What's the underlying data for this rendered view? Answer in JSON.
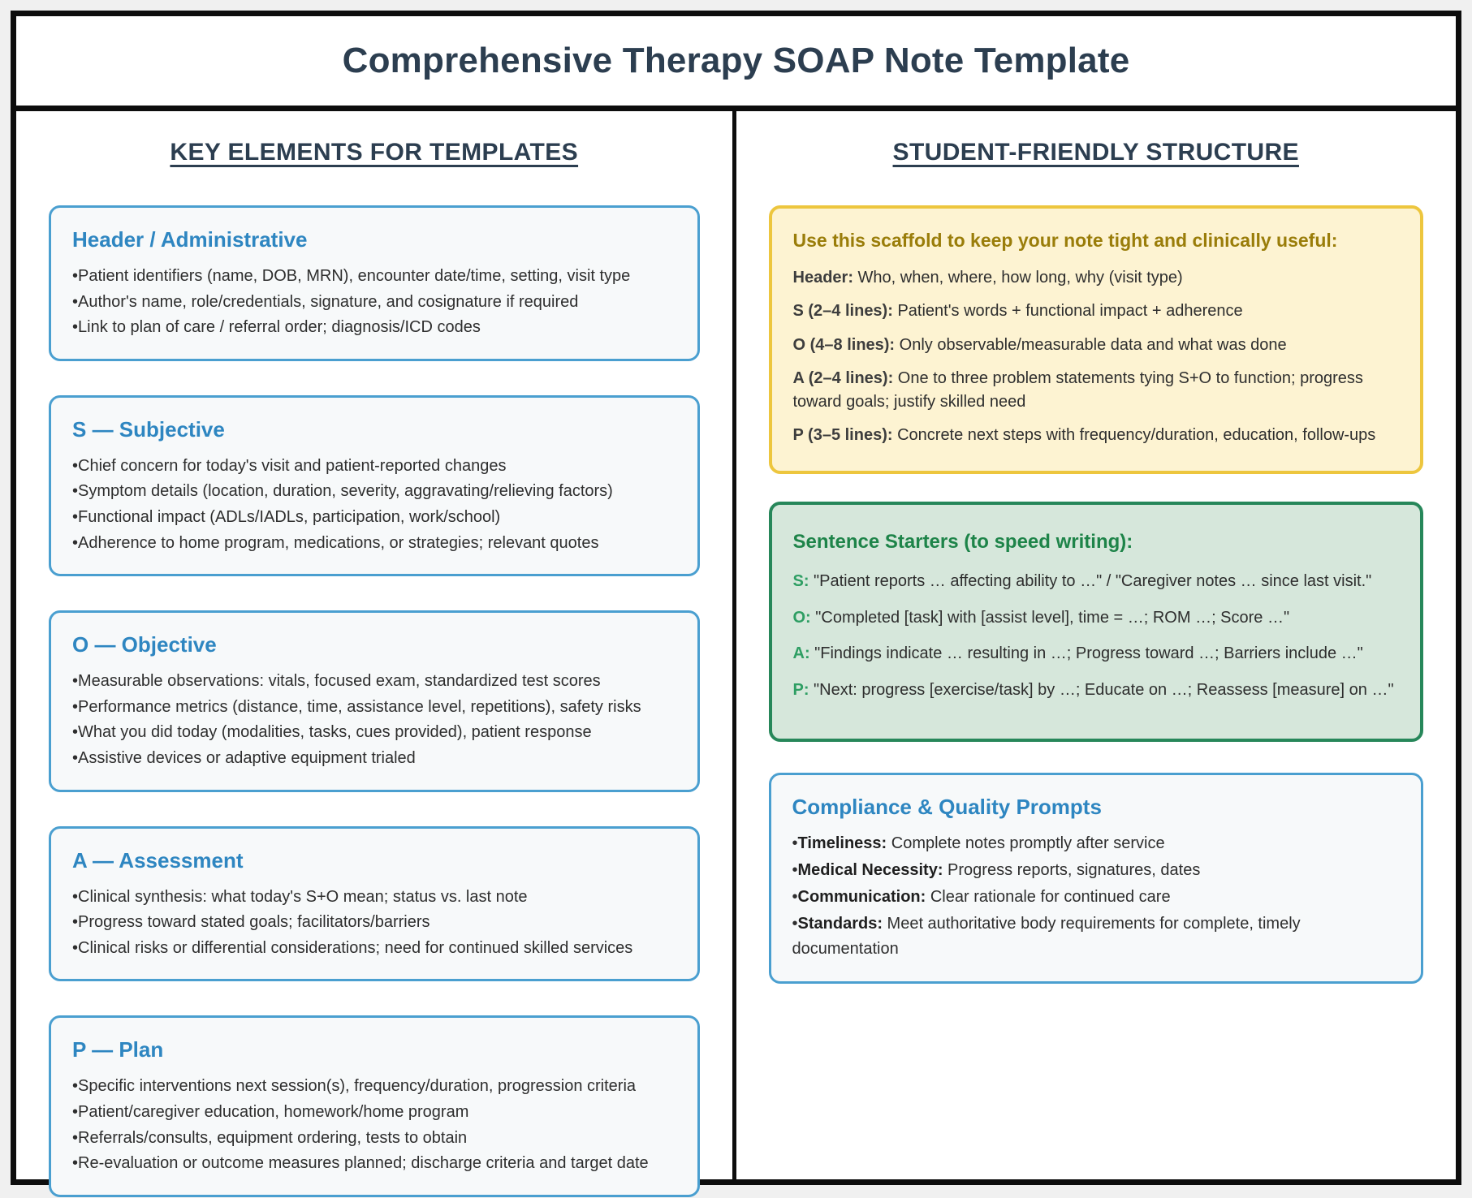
{
  "title": "Comprehensive Therapy SOAP Note Template",
  "colors": {
    "page-bg": "#f0f0f0",
    "frame-border": "#0d0d0d",
    "title-text": "#2c3e50",
    "body-text": "#2e2e2e",
    "box-blue-border": "#4a9fd0",
    "box-blue-bg": "#f7f9fa",
    "box-blue-title": "#2e86c1",
    "box-yellow-border": "#edc63e",
    "box-yellow-bg": "#fdf3d2",
    "box-yellow-title": "#9a7d0a",
    "box-yellow-label": "#3d3d3d",
    "box-green-border": "#27875a",
    "box-green-bg": "#d6e7db",
    "box-green-title": "#1e8449",
    "box-green-label": "#2e9e63"
  },
  "left": {
    "heading": "KEY ELEMENTS FOR TEMPLATES",
    "boxes": [
      {
        "title": "Header / Administrative",
        "bullets": [
          "Patient identifiers (name, DOB, MRN), encounter date/time, setting, visit type",
          "Author's name, role/credentials, signature, and cosignature if required",
          "Link to plan of care / referral order; diagnosis/ICD codes"
        ]
      },
      {
        "title": "S — Subjective",
        "bullets": [
          "Chief concern for today's visit and patient-reported changes",
          "Symptom details (location, duration, severity, aggravating/relieving factors)",
          "Functional impact (ADLs/IADLs, participation, work/school)",
          "Adherence to home program, medications, or strategies; relevant quotes"
        ]
      },
      {
        "title": "O — Objective",
        "bullets": [
          "Measurable observations: vitals, focused exam, standardized test scores",
          "Performance metrics (distance, time, assistance level, repetitions), safety risks",
          "What you did today (modalities, tasks, cues provided), patient response",
          "Assistive devices or adaptive equipment trialed"
        ]
      },
      {
        "title": "A — Assessment",
        "bullets": [
          "Clinical synthesis: what today's S+O mean; status vs. last note",
          "Progress toward stated goals; facilitators/barriers",
          "Clinical risks or differential considerations; need for continued skilled services"
        ]
      },
      {
        "title": "P — Plan",
        "bullets": [
          "Specific interventions next session(s), frequency/duration, progression criteria",
          "Patient/caregiver education, homework/home program",
          "Referrals/consults, equipment ordering, tests to obtain",
          "Re-evaluation or outcome measures planned; discharge criteria and target date"
        ]
      }
    ]
  },
  "right": {
    "heading": "STUDENT-FRIENDLY STRUCTURE",
    "scaffold_box": {
      "title": "Use this scaffold to keep your note tight and clinically useful:",
      "lines": [
        {
          "label": "Header:",
          "text": " Who, when, where, how long, why (visit type)"
        },
        {
          "label": "S (2–4 lines):",
          "text": " Patient's words + functional impact + adherence"
        },
        {
          "label": "O (4–8 lines):",
          "text": " Only observable/measurable data and what was done"
        },
        {
          "label": "A (2–4 lines):",
          "text": " One to three problem statements tying S+O to function; progress toward goals; justify skilled need"
        },
        {
          "label": "P (3–5 lines):",
          "text": " Concrete next steps with frequency/duration, education, follow-ups"
        }
      ]
    },
    "starters_box": {
      "title": "Sentence Starters (to speed writing):",
      "lines": [
        {
          "label": "S:",
          "text": " \"Patient reports … affecting ability to …\" / \"Caregiver notes … since last visit.\""
        },
        {
          "label": "O:",
          "text": " \"Completed [task] with [assist level], time = …; ROM …; Score …\""
        },
        {
          "label": "A:",
          "text": " \"Findings indicate … resulting in …; Progress toward …; Barriers include …\""
        },
        {
          "label": "P:",
          "text": " \"Next: progress [exercise/task] by …; Educate on …; Reassess [measure] on …\""
        }
      ]
    },
    "compliance_box": {
      "title": "Compliance & Quality Prompts",
      "lines": [
        {
          "label": "Timeliness:",
          "text": " Complete notes promptly after service"
        },
        {
          "label": "Medical Necessity:",
          "text": " Progress reports, signatures, dates"
        },
        {
          "label": "Communication:",
          "text": " Clear rationale for continued care"
        },
        {
          "label": "Standards:",
          "text": " Meet authoritative body requirements for complete, timely documentation"
        }
      ]
    }
  }
}
